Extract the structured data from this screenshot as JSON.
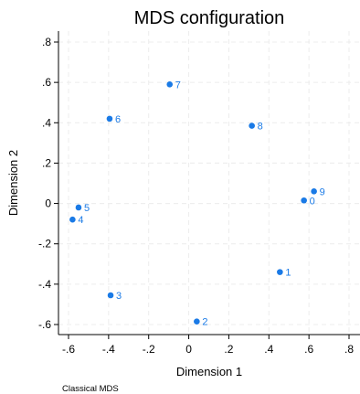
{
  "chart_data": {
    "type": "scatter",
    "title": "MDS configuration",
    "xlabel": "Dimension 1",
    "ylabel": "Dimension 2",
    "note": "Classical MDS",
    "xlim": [
      -0.6,
      0.8
    ],
    "ylim": [
      -0.6,
      0.8
    ],
    "xticks": [
      -0.6,
      -0.4,
      -0.2,
      0,
      0.2,
      0.4,
      0.6,
      0.8
    ],
    "xtick_labels": [
      "-.6",
      "-.4",
      "-.2",
      "0",
      ".2",
      ".4",
      ".6",
      ".8"
    ],
    "yticks": [
      -0.6,
      -0.4,
      -0.2,
      0,
      0.2,
      0.4,
      0.6,
      0.8
    ],
    "ytick_labels": [
      "-.6",
      "-.4",
      "-.2",
      "0",
      ".2",
      ".4",
      ".6",
      ".8"
    ],
    "grid": true,
    "marker_color": "#1a7ae6",
    "points": [
      {
        "label": "0",
        "x": 0.575,
        "y": 0.015
      },
      {
        "label": "1",
        "x": 0.455,
        "y": -0.34
      },
      {
        "label": "2",
        "x": 0.04,
        "y": -0.585
      },
      {
        "label": "3",
        "x": -0.39,
        "y": -0.455
      },
      {
        "label": "4",
        "x": -0.58,
        "y": -0.08
      },
      {
        "label": "5",
        "x": -0.55,
        "y": -0.02
      },
      {
        "label": "6",
        "x": -0.395,
        "y": 0.42
      },
      {
        "label": "7",
        "x": -0.095,
        "y": 0.59
      },
      {
        "label": "8",
        "x": 0.315,
        "y": 0.385
      },
      {
        "label": "9",
        "x": 0.625,
        "y": 0.06
      }
    ]
  }
}
